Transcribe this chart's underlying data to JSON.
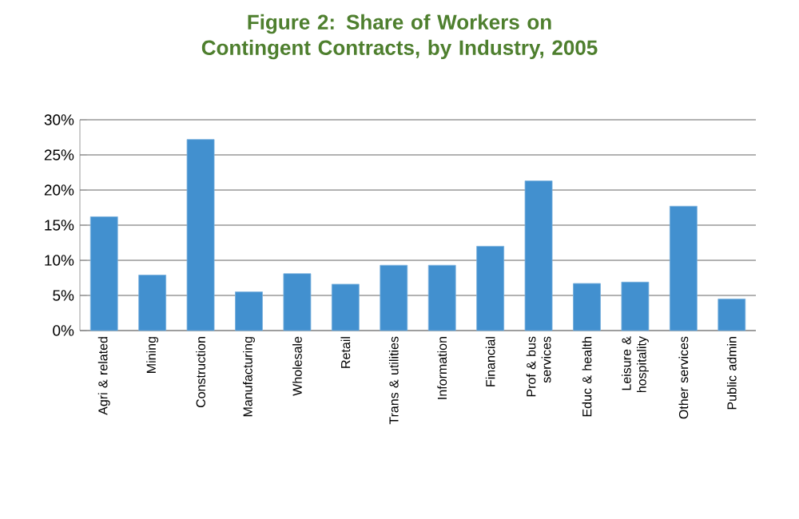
{
  "chart_data": {
    "type": "bar",
    "title": "Figure 2: Share of Workers on Contingent Contracts, by Industry, 2005",
    "categories": [
      "Agri & related",
      "Mining",
      "Construction",
      "Manufacturing",
      "Wholesale",
      "Retail",
      "Trans & utilities",
      "Information",
      "Financial",
      "Prof & bus services",
      "Educ & health",
      "Leisure & hospitality",
      "Other services",
      "Public admin"
    ],
    "values": [
      16.2,
      7.9,
      27.2,
      5.5,
      8.1,
      6.6,
      9.3,
      9.3,
      12.0,
      21.3,
      6.7,
      6.9,
      17.7,
      4.5
    ],
    "color": "#4290cf",
    "ylim": [
      0,
      30
    ],
    "yticks": [
      {
        "value": 0,
        "label": "0%"
      },
      {
        "value": 5,
        "label": "5%"
      },
      {
        "value": 10,
        "label": "10%"
      },
      {
        "value": 15,
        "label": "15%"
      },
      {
        "value": 20,
        "label": "20%"
      },
      {
        "value": 25,
        "label": "25%"
      },
      {
        "value": 30,
        "label": "30%"
      }
    ],
    "grid": "y"
  }
}
